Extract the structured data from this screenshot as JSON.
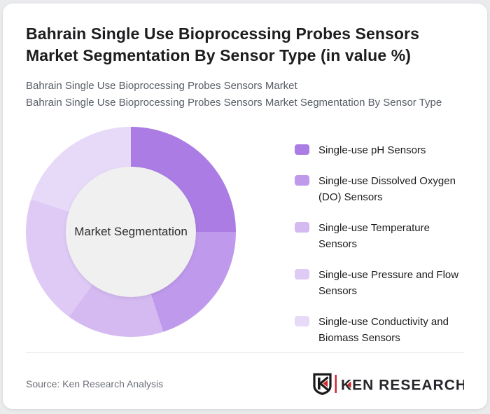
{
  "header": {
    "title": "Bahrain Single Use Bioprocessing Probes Sensors Market Segmentation By Sensor Type (in value %)",
    "subtitle_line1": "Bahrain Single Use Bioprocessing Probes Sensors Market",
    "subtitle_line2": "Bahrain Single Use Bioprocessing Probes Sensors Market Segmentation By Sensor Type"
  },
  "chart_data": {
    "type": "pie",
    "variant": "donut",
    "center_label": "Market Segmentation",
    "start_angle_deg": 0,
    "direction": "clockwise",
    "legend_position": "right",
    "values_labeled_on_chart": false,
    "categories": [
      "Single-use pH Sensors",
      "Single-use Dissolved Oxygen (DO) Sensors",
      "Single-use Temperature Sensors",
      "Single-use Pressure and Flow Sensors",
      "Single-use Conductivity and Biomass Sensors"
    ],
    "values_pct_estimated": [
      25,
      20,
      15,
      20,
      20
    ],
    "colors": [
      "#aa7ce4",
      "#bf9aec",
      "#d5baf2",
      "#decaf5",
      "#e7daf8"
    ],
    "hole_color": "#f0f0f0",
    "hole_ratio": 0.62
  },
  "footer": {
    "source": "Source: Ken Research Analysis",
    "logo": {
      "brand": "KEN RESEARCH",
      "accent_color": "#d02127",
      "text_color": "#26262b"
    }
  }
}
